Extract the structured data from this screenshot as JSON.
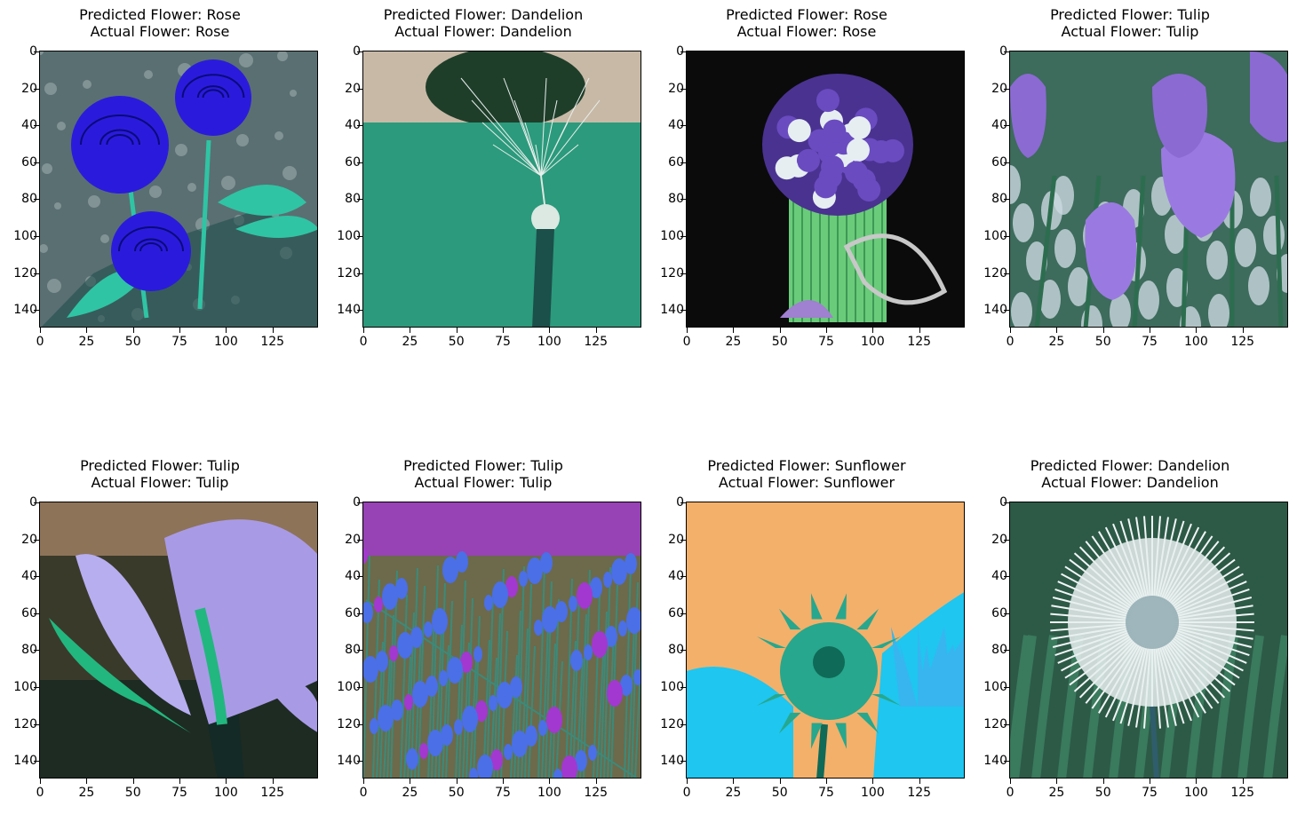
{
  "panels": [
    {
      "predicted": "Predicted Flower: Rose",
      "actual": "Actual Flower: Rose",
      "scene": "rose-blue",
      "colors": {
        "bg": "#5a6f72",
        "flower": "#2a1bdc",
        "leaf": "#2fc4a4",
        "accent": "#cfd8d8"
      }
    },
    {
      "predicted": "Predicted Flower: Dandelion",
      "actual": "Actual Flower: Dandelion",
      "scene": "dandelion-seed",
      "colors": {
        "bg": "#2c9a7c",
        "flower": "#dce8e2",
        "leaf": "#1b4f4a",
        "accent": "#c8b9a6"
      }
    },
    {
      "predicted": "Predicted Flower: Rose",
      "actual": "Actual Flower: Rose",
      "scene": "rose-vase",
      "colors": {
        "bg": "#0b0b0b",
        "flower": "#6a4bc0",
        "leaf": "#6acb7a",
        "accent": "#e6eef2"
      }
    },
    {
      "predicted": "Predicted Flower: Tulip",
      "actual": "Actual Flower: Tulip",
      "scene": "tulip-purple",
      "colors": {
        "bg": "#3d6b5c",
        "flower": "#9a7ae0",
        "leaf": "#2d6d4f",
        "accent": "#cbd8e0"
      }
    },
    {
      "predicted": "Predicted Flower: Tulip",
      "actual": "Actual Flower: Tulip",
      "scene": "tulip-closeup",
      "colors": {
        "bg": "#3a3a2a",
        "flower": "#a99ae6",
        "leaf": "#22b77f",
        "accent": "#c59a78"
      }
    },
    {
      "predicted": "Predicted Flower: Tulip",
      "actual": "Actual Flower: Tulip",
      "scene": "tulip-field",
      "colors": {
        "bg": "#6c6a4a",
        "flower": "#4a6fe6",
        "leaf": "#3c8a7a",
        "accent": "#a338d0"
      }
    },
    {
      "predicted": "Predicted Flower: Sunflower",
      "actual": "Actual Flower: Sunflower",
      "scene": "sunflower",
      "colors": {
        "bg": "#f3b06a",
        "flower": "#27a78d",
        "leaf": "#1ec6f0",
        "accent": "#0f6a58"
      }
    },
    {
      "predicted": "Predicted Flower: Dandelion",
      "actual": "Actual Flower: Dandelion",
      "scene": "dandelion-puff",
      "colors": {
        "bg": "#2d5a47",
        "flower": "#e7efef",
        "leaf": "#3a7a5d",
        "accent": "#6c8f9a"
      }
    }
  ],
  "yticks": [
    "0",
    "20",
    "40",
    "60",
    "80",
    "100",
    "120",
    "140"
  ],
  "xticks": [
    "0",
    "25",
    "50",
    "75",
    "100",
    "125"
  ],
  "image_size": 150
}
